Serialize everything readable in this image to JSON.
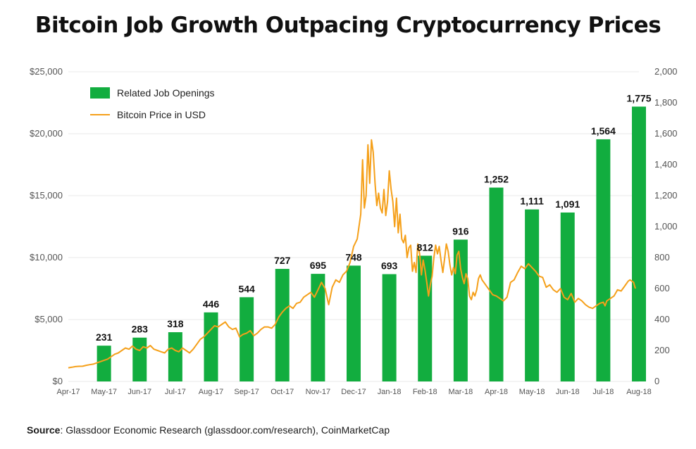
{
  "title": "Bitcoin Job Growth Outpacing Cryptocurrency Prices",
  "source": {
    "label": "Source",
    "text": ": Glassdoor Economic Research (glassdoor.com/research), CoinMarketCap"
  },
  "colors": {
    "bars": "#12ad3f",
    "line": "#f5a01a",
    "grid": "#e8e8e8"
  },
  "chart_data": {
    "type": "bar",
    "categories": [
      "Apr-17",
      "May-17",
      "Jun-17",
      "Jul-17",
      "Aug-17",
      "Sep-17",
      "Oct-17",
      "Nov-17",
      "Dec-17",
      "Jan-18",
      "Feb-18",
      "Mar-18",
      "Apr-18",
      "May-18",
      "Jun-18",
      "Jul-18",
      "Aug-18"
    ],
    "series": [
      {
        "name": "Related Job Openings",
        "type": "bar",
        "axis": "right",
        "values": [
          null,
          231,
          283,
          318,
          446,
          544,
          727,
          695,
          748,
          693,
          812,
          916,
          1252,
          1111,
          1091,
          1564,
          1775
        ],
        "labels": [
          "",
          "231",
          "283",
          "318",
          "446",
          "544",
          "727",
          "695",
          "748",
          "693",
          "812",
          "916",
          "1,252",
          "1,111",
          "1,091",
          "1,564",
          "1,775"
        ]
      },
      {
        "name": "Bitcoin Price in USD",
        "type": "line",
        "axis": "left",
        "points": [
          [
            0,
            1100
          ],
          [
            0.1,
            1150
          ],
          [
            0.2,
            1200
          ],
          [
            0.3,
            1220
          ],
          [
            0.4,
            1230
          ],
          [
            0.5,
            1300
          ],
          [
            0.6,
            1350
          ],
          [
            0.7,
            1400
          ],
          [
            0.8,
            1500
          ],
          [
            0.9,
            1600
          ],
          [
            1.0,
            1700
          ],
          [
            1.1,
            1800
          ],
          [
            1.2,
            2000
          ],
          [
            1.3,
            2200
          ],
          [
            1.4,
            2300
          ],
          [
            1.5,
            2500
          ],
          [
            1.6,
            2700
          ],
          [
            1.7,
            2600
          ],
          [
            1.8,
            2850
          ],
          [
            1.9,
            2600
          ],
          [
            2.0,
            2500
          ],
          [
            2.1,
            2800
          ],
          [
            2.2,
            2700
          ],
          [
            2.3,
            2900
          ],
          [
            2.4,
            2600
          ],
          [
            2.5,
            2500
          ],
          [
            2.6,
            2400
          ],
          [
            2.7,
            2300
          ],
          [
            2.8,
            2600
          ],
          [
            2.9,
            2700
          ],
          [
            3.0,
            2500
          ],
          [
            3.1,
            2400
          ],
          [
            3.2,
            2700
          ],
          [
            3.3,
            2500
          ],
          [
            3.4,
            2300
          ],
          [
            3.5,
            2600
          ],
          [
            3.6,
            3000
          ],
          [
            3.7,
            3400
          ],
          [
            3.8,
            3600
          ],
          [
            3.9,
            3900
          ],
          [
            4.0,
            4200
          ],
          [
            4.1,
            4500
          ],
          [
            4.2,
            4400
          ],
          [
            4.3,
            4600
          ],
          [
            4.4,
            4800
          ],
          [
            4.5,
            4400
          ],
          [
            4.6,
            4200
          ],
          [
            4.7,
            4300
          ],
          [
            4.8,
            3600
          ],
          [
            4.9,
            3800
          ],
          [
            5.0,
            3900
          ],
          [
            5.1,
            4100
          ],
          [
            5.2,
            3700
          ],
          [
            5.3,
            3900
          ],
          [
            5.4,
            4200
          ],
          [
            5.5,
            4400
          ],
          [
            5.6,
            4400
          ],
          [
            5.7,
            4300
          ],
          [
            5.8,
            4600
          ],
          [
            5.9,
            5200
          ],
          [
            6.0,
            5600
          ],
          [
            6.1,
            5900
          ],
          [
            6.2,
            6100
          ],
          [
            6.3,
            5900
          ],
          [
            6.4,
            6300
          ],
          [
            6.5,
            6400
          ],
          [
            6.6,
            6800
          ],
          [
            6.7,
            7000
          ],
          [
            6.8,
            7200
          ],
          [
            6.9,
            6800
          ],
          [
            7.0,
            7400
          ],
          [
            7.1,
            8000
          ],
          [
            7.2,
            7500
          ],
          [
            7.3,
            6200
          ],
          [
            7.4,
            7600
          ],
          [
            7.5,
            8200
          ],
          [
            7.6,
            8000
          ],
          [
            7.7,
            8600
          ],
          [
            7.8,
            8900
          ],
          [
            7.9,
            9600
          ],
          [
            8.0,
            10900
          ],
          [
            8.1,
            11500
          ],
          [
            8.2,
            13500
          ],
          [
            8.25,
            17900
          ],
          [
            8.3,
            14000
          ],
          [
            8.35,
            15000
          ],
          [
            8.4,
            19100
          ],
          [
            8.45,
            16000
          ],
          [
            8.5,
            19500
          ],
          [
            8.55,
            18500
          ],
          [
            8.6,
            16000
          ],
          [
            8.65,
            14200
          ],
          [
            8.7,
            15200
          ],
          [
            8.75,
            14000
          ],
          [
            8.8,
            13600
          ],
          [
            8.85,
            15500
          ],
          [
            8.9,
            13400
          ],
          [
            8.95,
            14500
          ],
          [
            9.0,
            17000
          ],
          [
            9.05,
            15500
          ],
          [
            9.1,
            14500
          ],
          [
            9.15,
            12500
          ],
          [
            9.2,
            14800
          ],
          [
            9.25,
            12000
          ],
          [
            9.3,
            13500
          ],
          [
            9.35,
            11500
          ],
          [
            9.4,
            11200
          ],
          [
            9.45,
            11800
          ],
          [
            9.5,
            10000
          ],
          [
            9.55,
            10800
          ],
          [
            9.6,
            11000
          ],
          [
            9.65,
            8900
          ],
          [
            9.7,
            9600
          ],
          [
            9.75,
            8800
          ],
          [
            9.8,
            11100
          ],
          [
            9.85,
            10300
          ],
          [
            9.9,
            8600
          ],
          [
            9.95,
            9800
          ],
          [
            10.0,
            9000
          ],
          [
            10.05,
            8000
          ],
          [
            10.1,
            6900
          ],
          [
            10.15,
            7800
          ],
          [
            10.2,
            8500
          ],
          [
            10.25,
            10000
          ],
          [
            10.3,
            11000
          ],
          [
            10.35,
            10300
          ],
          [
            10.4,
            10900
          ],
          [
            10.45,
            9800
          ],
          [
            10.5,
            8800
          ],
          [
            10.55,
            9900
          ],
          [
            10.6,
            11100
          ],
          [
            10.65,
            10500
          ],
          [
            10.7,
            9400
          ],
          [
            10.75,
            8600
          ],
          [
            10.8,
            9200
          ],
          [
            10.85,
            8700
          ],
          [
            10.9,
            10200
          ],
          [
            10.95,
            10500
          ],
          [
            11.0,
            9100
          ],
          [
            11.05,
            8400
          ],
          [
            11.1,
            7900
          ],
          [
            11.15,
            8700
          ],
          [
            11.2,
            8300
          ],
          [
            11.25,
            6900
          ],
          [
            11.3,
            6600
          ],
          [
            11.35,
            7200
          ],
          [
            11.4,
            6900
          ],
          [
            11.45,
            7400
          ],
          [
            11.5,
            8300
          ],
          [
            11.55,
            8600
          ],
          [
            11.6,
            8200
          ],
          [
            11.7,
            7800
          ],
          [
            11.8,
            7400
          ],
          [
            11.9,
            7000
          ],
          [
            12.0,
            6900
          ],
          [
            12.1,
            6700
          ],
          [
            12.2,
            6500
          ],
          [
            12.3,
            6800
          ],
          [
            12.4,
            8000
          ],
          [
            12.5,
            8200
          ],
          [
            12.6,
            8800
          ],
          [
            12.7,
            9300
          ],
          [
            12.8,
            9100
          ],
          [
            12.9,
            9500
          ],
          [
            13.0,
            9200
          ],
          [
            13.1,
            8900
          ],
          [
            13.2,
            8500
          ],
          [
            13.3,
            8400
          ],
          [
            13.4,
            7600
          ],
          [
            13.5,
            7800
          ],
          [
            13.6,
            7400
          ],
          [
            13.7,
            7200
          ],
          [
            13.8,
            7500
          ],
          [
            13.9,
            6800
          ],
          [
            14.0,
            6600
          ],
          [
            14.1,
            7100
          ],
          [
            14.2,
            6400
          ],
          [
            14.3,
            6700
          ],
          [
            14.4,
            6500
          ],
          [
            14.5,
            6200
          ],
          [
            14.6,
            6000
          ],
          [
            14.7,
            5900
          ],
          [
            14.8,
            6100
          ],
          [
            14.9,
            6300
          ],
          [
            15.0,
            6400
          ],
          [
            15.05,
            6100
          ],
          [
            15.1,
            6500
          ],
          [
            15.2,
            6700
          ],
          [
            15.3,
            6900
          ],
          [
            15.4,
            7400
          ],
          [
            15.5,
            7300
          ],
          [
            15.6,
            7700
          ],
          [
            15.7,
            8100
          ],
          [
            15.75,
            8200
          ],
          [
            15.8,
            8100
          ],
          [
            15.85,
            8000
          ],
          [
            15.9,
            7500
          ]
        ]
      }
    ],
    "left_axis": {
      "ylim": [
        0,
        25000
      ],
      "ticks": [
        "$0",
        "$5,000",
        "$10,000",
        "$15,000",
        "$20,000",
        "$25,000"
      ]
    },
    "right_axis": {
      "ylim": [
        0,
        2000
      ],
      "ticks": [
        "0",
        "200",
        "400",
        "600",
        "800",
        "1,000",
        "1,200",
        "1,400",
        "1,600",
        "1,800",
        "2,000"
      ]
    },
    "grid": true,
    "legend_position": "top-left"
  }
}
